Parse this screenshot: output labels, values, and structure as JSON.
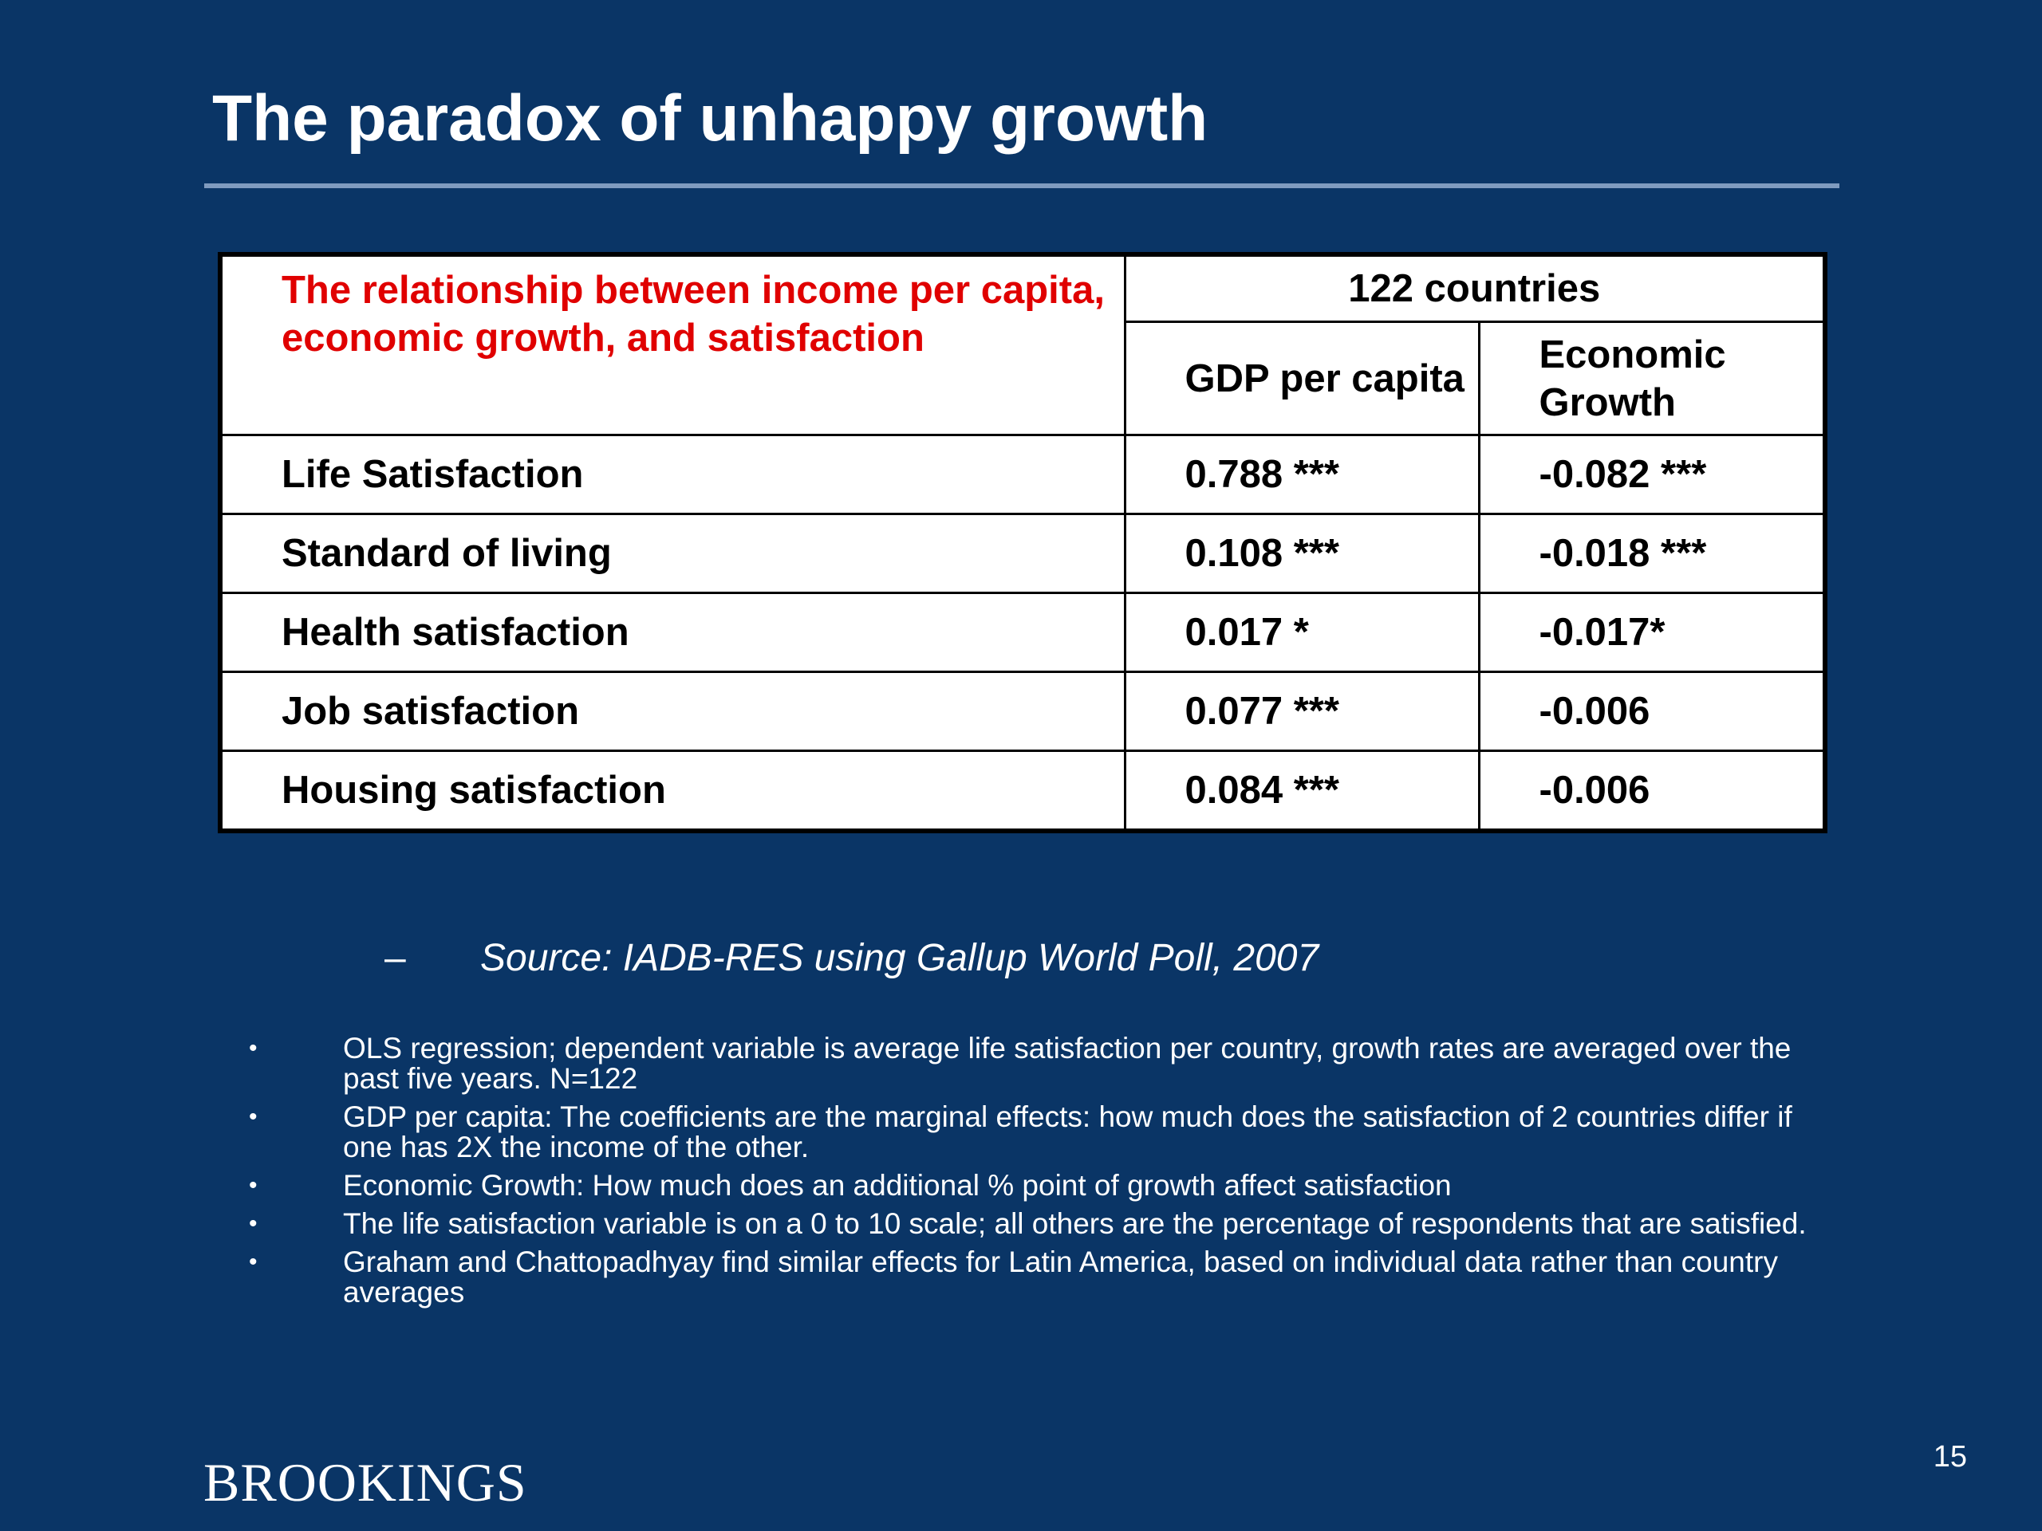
{
  "slide": {
    "title": "The paradox of unhappy growth",
    "page_number": "15",
    "brand": "BROOKINGS"
  },
  "table": {
    "caption": "The relationship between income per capita, economic growth, and satisfaction",
    "group_header": "122 countries",
    "col_gdp": "GDP per capita",
    "col_growth": "Economic Growth",
    "rows": [
      {
        "label": "Life Satisfaction",
        "gdp": "0.788 ***",
        "growth": "-0.082 ***"
      },
      {
        "label": "Standard of living",
        "gdp": "0.108 ***",
        "growth": "-0.018 ***"
      },
      {
        "label": "Health satisfaction",
        "gdp": "0.017 *",
        "growth": "-0.017*"
      },
      {
        "label": "Job satisfaction",
        "gdp": "0.077 ***",
        "growth": "-0.006"
      },
      {
        "label": "Housing satisfaction",
        "gdp": "0.084 ***",
        "growth": "-0.006"
      }
    ]
  },
  "source": {
    "dash": "–",
    "text": "Source: IADB-RES using Gallup World Poll, 2007"
  },
  "notes": {
    "bullet": "•",
    "items": [
      "OLS regression; dependent variable is average life satisfaction per country, growth rates are averaged over the past five years. N=122",
      "GDP per capita: The coefficients are the marginal effects: how much does the satisfaction of 2 countries differ if one has 2X the income of the other.",
      "Economic Growth: How much does an additional % point of growth affect satisfaction",
      "The life satisfaction variable is on a 0 to 10 scale; all others are the percentage of respondents that are satisfied.",
      "Graham and Chattopadhyay find similar effects for Latin America, based on individual data rather than country averages"
    ]
  }
}
